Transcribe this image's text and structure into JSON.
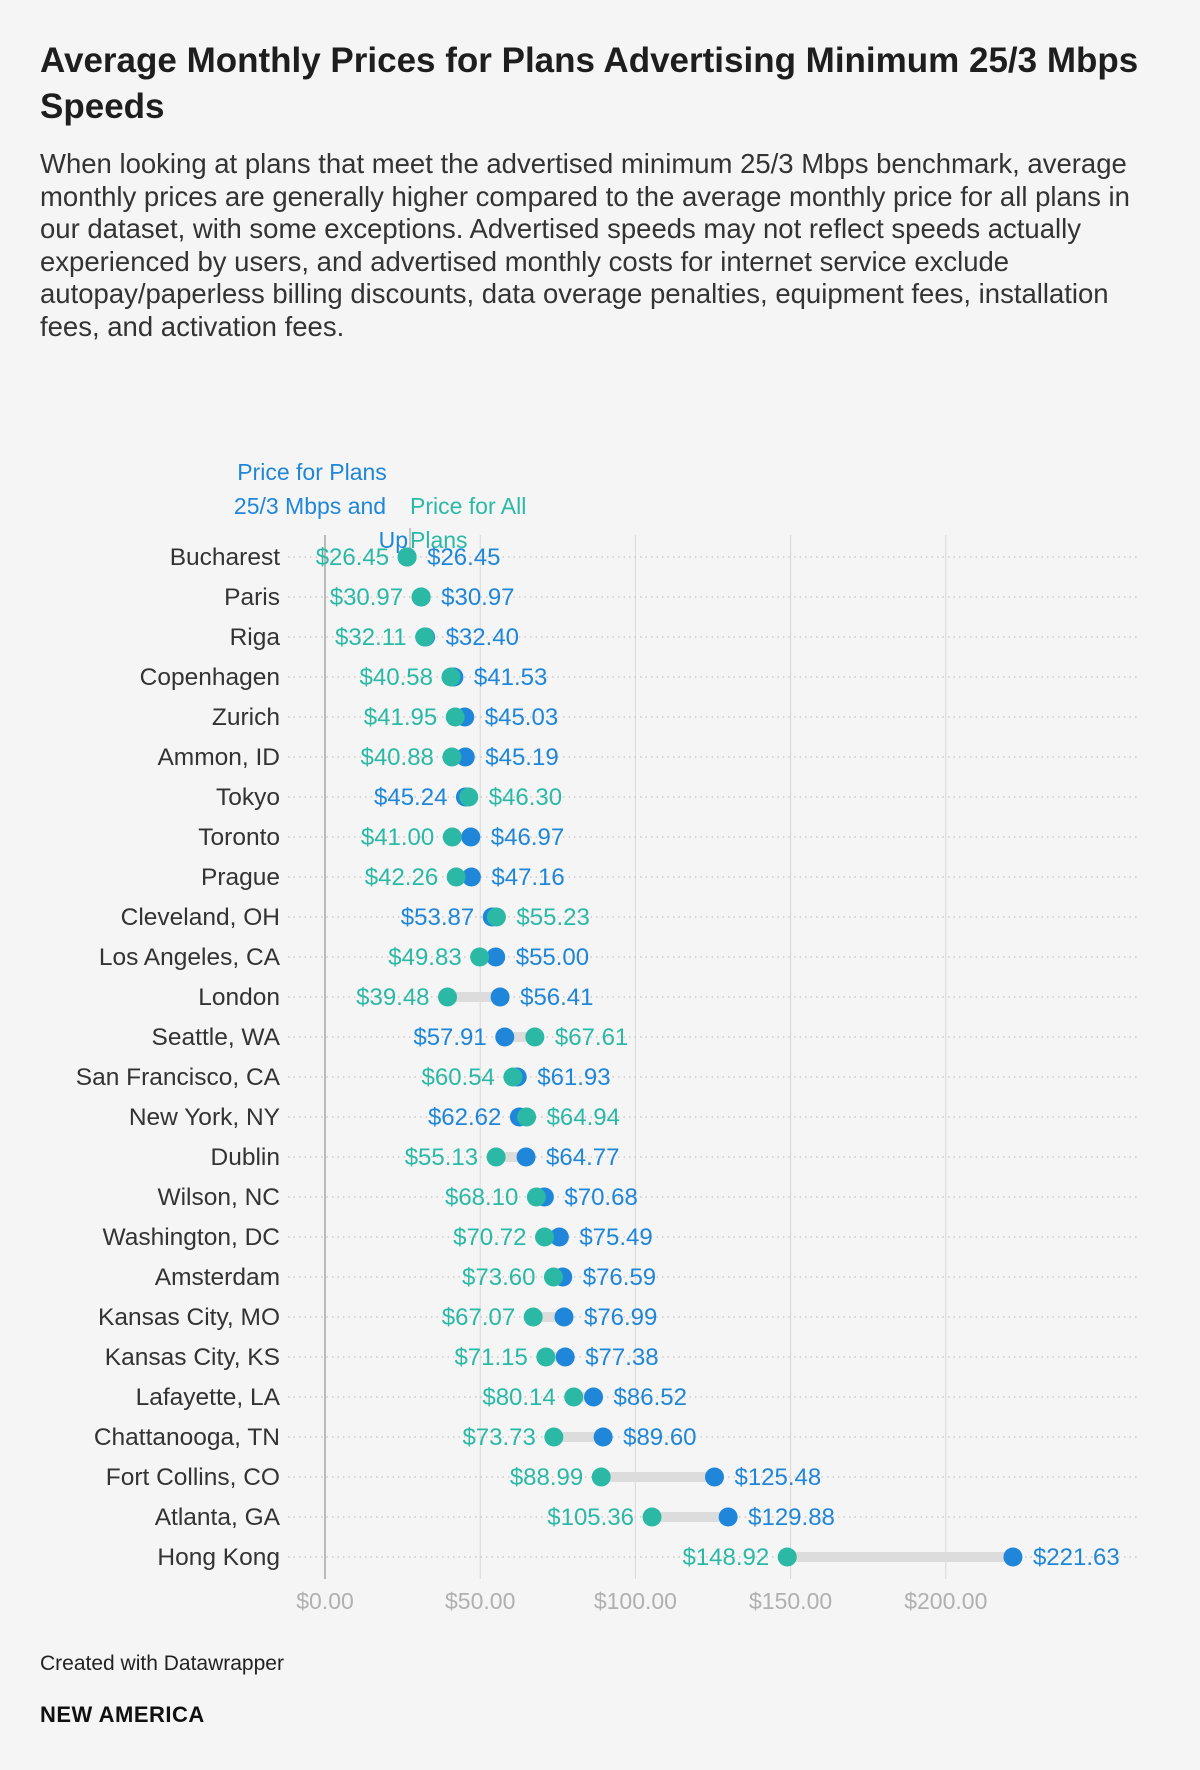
{
  "title": "Average Monthly Prices for Plans Advertising Minimum 25/3 Mbps Speeds",
  "subtitle": "When looking at plans that meet the advertised minimum 25/3 Mbps benchmark, average monthly prices are generally higher compared to the average monthly price for all plans in our dataset, with some exceptions. Advertised speeds may not reflect speeds actually experienced by users, and advertised monthly costs for internet service exclude autopay/paperless billing discounts, data overage penalties, equipment fees, installation fees, and activation fees.",
  "credit": "Created with Datawrapper",
  "brand": "NEW AMERICA",
  "colors": {
    "plans_25_3": "#1f86d9",
    "all_plans": "#2bb9a6",
    "range_bar": "#dcdcdc",
    "gridline": "#d8d8d8",
    "dotted": "#c4c4c4"
  },
  "chart_data": {
    "type": "dot-range",
    "xlim": [
      0,
      220
    ],
    "xticks": [
      0,
      50,
      100,
      150,
      200
    ],
    "xtick_labels": [
      "$0.00",
      "$50.00",
      "$100.00",
      "$150.00",
      "$200.00"
    ],
    "legend": {
      "plans_25_3": [
        "Price for Plans",
        "25/3 Mbps and",
        "Up"
      ],
      "all_plans": [
        "Price for All",
        "Plans"
      ]
    },
    "series": [
      {
        "name": "Price for Plans 25/3 Mbps and Up",
        "key": "plans_25_3"
      },
      {
        "name": "Price for All Plans",
        "key": "all_plans"
      }
    ],
    "rows": [
      {
        "city": "Bucharest",
        "all_plans": 26.45,
        "plans_25_3": 26.45,
        "all_label": "$26.45",
        "p25_label": "$26.45"
      },
      {
        "city": "Paris",
        "all_plans": 30.97,
        "plans_25_3": 30.97,
        "all_label": "$30.97",
        "p25_label": "$30.97"
      },
      {
        "city": "Riga",
        "all_plans": 32.11,
        "plans_25_3": 32.4,
        "all_label": "$32.11",
        "p25_label": "$32.40"
      },
      {
        "city": "Copenhagen",
        "all_plans": 40.58,
        "plans_25_3": 41.53,
        "all_label": "$40.58",
        "p25_label": "$41.53"
      },
      {
        "city": "Zurich",
        "all_plans": 41.95,
        "plans_25_3": 45.03,
        "all_label": "$41.95",
        "p25_label": "$45.03"
      },
      {
        "city": "Ammon, ID",
        "all_plans": 40.88,
        "plans_25_3": 45.19,
        "all_label": "$40.88",
        "p25_label": "$45.19"
      },
      {
        "city": "Tokyo",
        "all_plans": 46.3,
        "plans_25_3": 45.24,
        "all_label": "$46.30",
        "p25_label": "$45.24"
      },
      {
        "city": "Toronto",
        "all_plans": 41.0,
        "plans_25_3": 46.97,
        "all_label": "$41.00",
        "p25_label": "$46.97"
      },
      {
        "city": "Prague",
        "all_plans": 42.26,
        "plans_25_3": 47.16,
        "all_label": "$42.26",
        "p25_label": "$47.16"
      },
      {
        "city": "Cleveland, OH",
        "all_plans": 55.23,
        "plans_25_3": 53.87,
        "all_label": "$55.23",
        "p25_label": "$53.87"
      },
      {
        "city": "Los Angeles, CA",
        "all_plans": 49.83,
        "plans_25_3": 55.0,
        "all_label": "$49.83",
        "p25_label": "$55.00"
      },
      {
        "city": "London",
        "all_plans": 39.48,
        "plans_25_3": 56.41,
        "all_label": "$39.48",
        "p25_label": "$56.41"
      },
      {
        "city": "Seattle, WA",
        "all_plans": 67.61,
        "plans_25_3": 57.91,
        "all_label": "$67.61",
        "p25_label": "$57.91"
      },
      {
        "city": "San Francisco, CA",
        "all_plans": 60.54,
        "plans_25_3": 61.93,
        "all_label": "$60.54",
        "p25_label": "$61.93"
      },
      {
        "city": "New York, NY",
        "all_plans": 64.94,
        "plans_25_3": 62.62,
        "all_label": "$64.94",
        "p25_label": "$62.62"
      },
      {
        "city": "Dublin",
        "all_plans": 55.13,
        "plans_25_3": 64.77,
        "all_label": "$55.13",
        "p25_label": "$64.77"
      },
      {
        "city": "Wilson, NC",
        "all_plans": 68.1,
        "plans_25_3": 70.68,
        "all_label": "$68.10",
        "p25_label": "$70.68"
      },
      {
        "city": "Washington, DC",
        "all_plans": 70.72,
        "plans_25_3": 75.49,
        "all_label": "$70.72",
        "p25_label": "$75.49"
      },
      {
        "city": "Amsterdam",
        "all_plans": 73.6,
        "plans_25_3": 76.59,
        "all_label": "$73.60",
        "p25_label": "$76.59"
      },
      {
        "city": "Kansas City, MO",
        "all_plans": 67.07,
        "plans_25_3": 76.99,
        "all_label": "$67.07",
        "p25_label": "$76.99"
      },
      {
        "city": "Kansas City, KS",
        "all_plans": 71.15,
        "plans_25_3": 77.38,
        "all_label": "$71.15",
        "p25_label": "$77.38"
      },
      {
        "city": "Lafayette, LA",
        "all_plans": 80.14,
        "plans_25_3": 86.52,
        "all_label": "$80.14",
        "p25_label": "$86.52"
      },
      {
        "city": "Chattanooga, TN",
        "all_plans": 73.73,
        "plans_25_3": 89.6,
        "all_label": "$73.73",
        "p25_label": "$89.60"
      },
      {
        "city": "Fort Collins, CO",
        "all_plans": 88.99,
        "plans_25_3": 125.48,
        "all_label": "$88.99",
        "p25_label": "$125.48"
      },
      {
        "city": "Atlanta, GA",
        "all_plans": 105.36,
        "plans_25_3": 129.88,
        "all_label": "$105.36",
        "p25_label": "$129.88"
      },
      {
        "city": "Hong Kong",
        "all_plans": 148.92,
        "plans_25_3": 221.63,
        "all_label": "$148.92",
        "p25_label": "$221.63"
      }
    ]
  }
}
